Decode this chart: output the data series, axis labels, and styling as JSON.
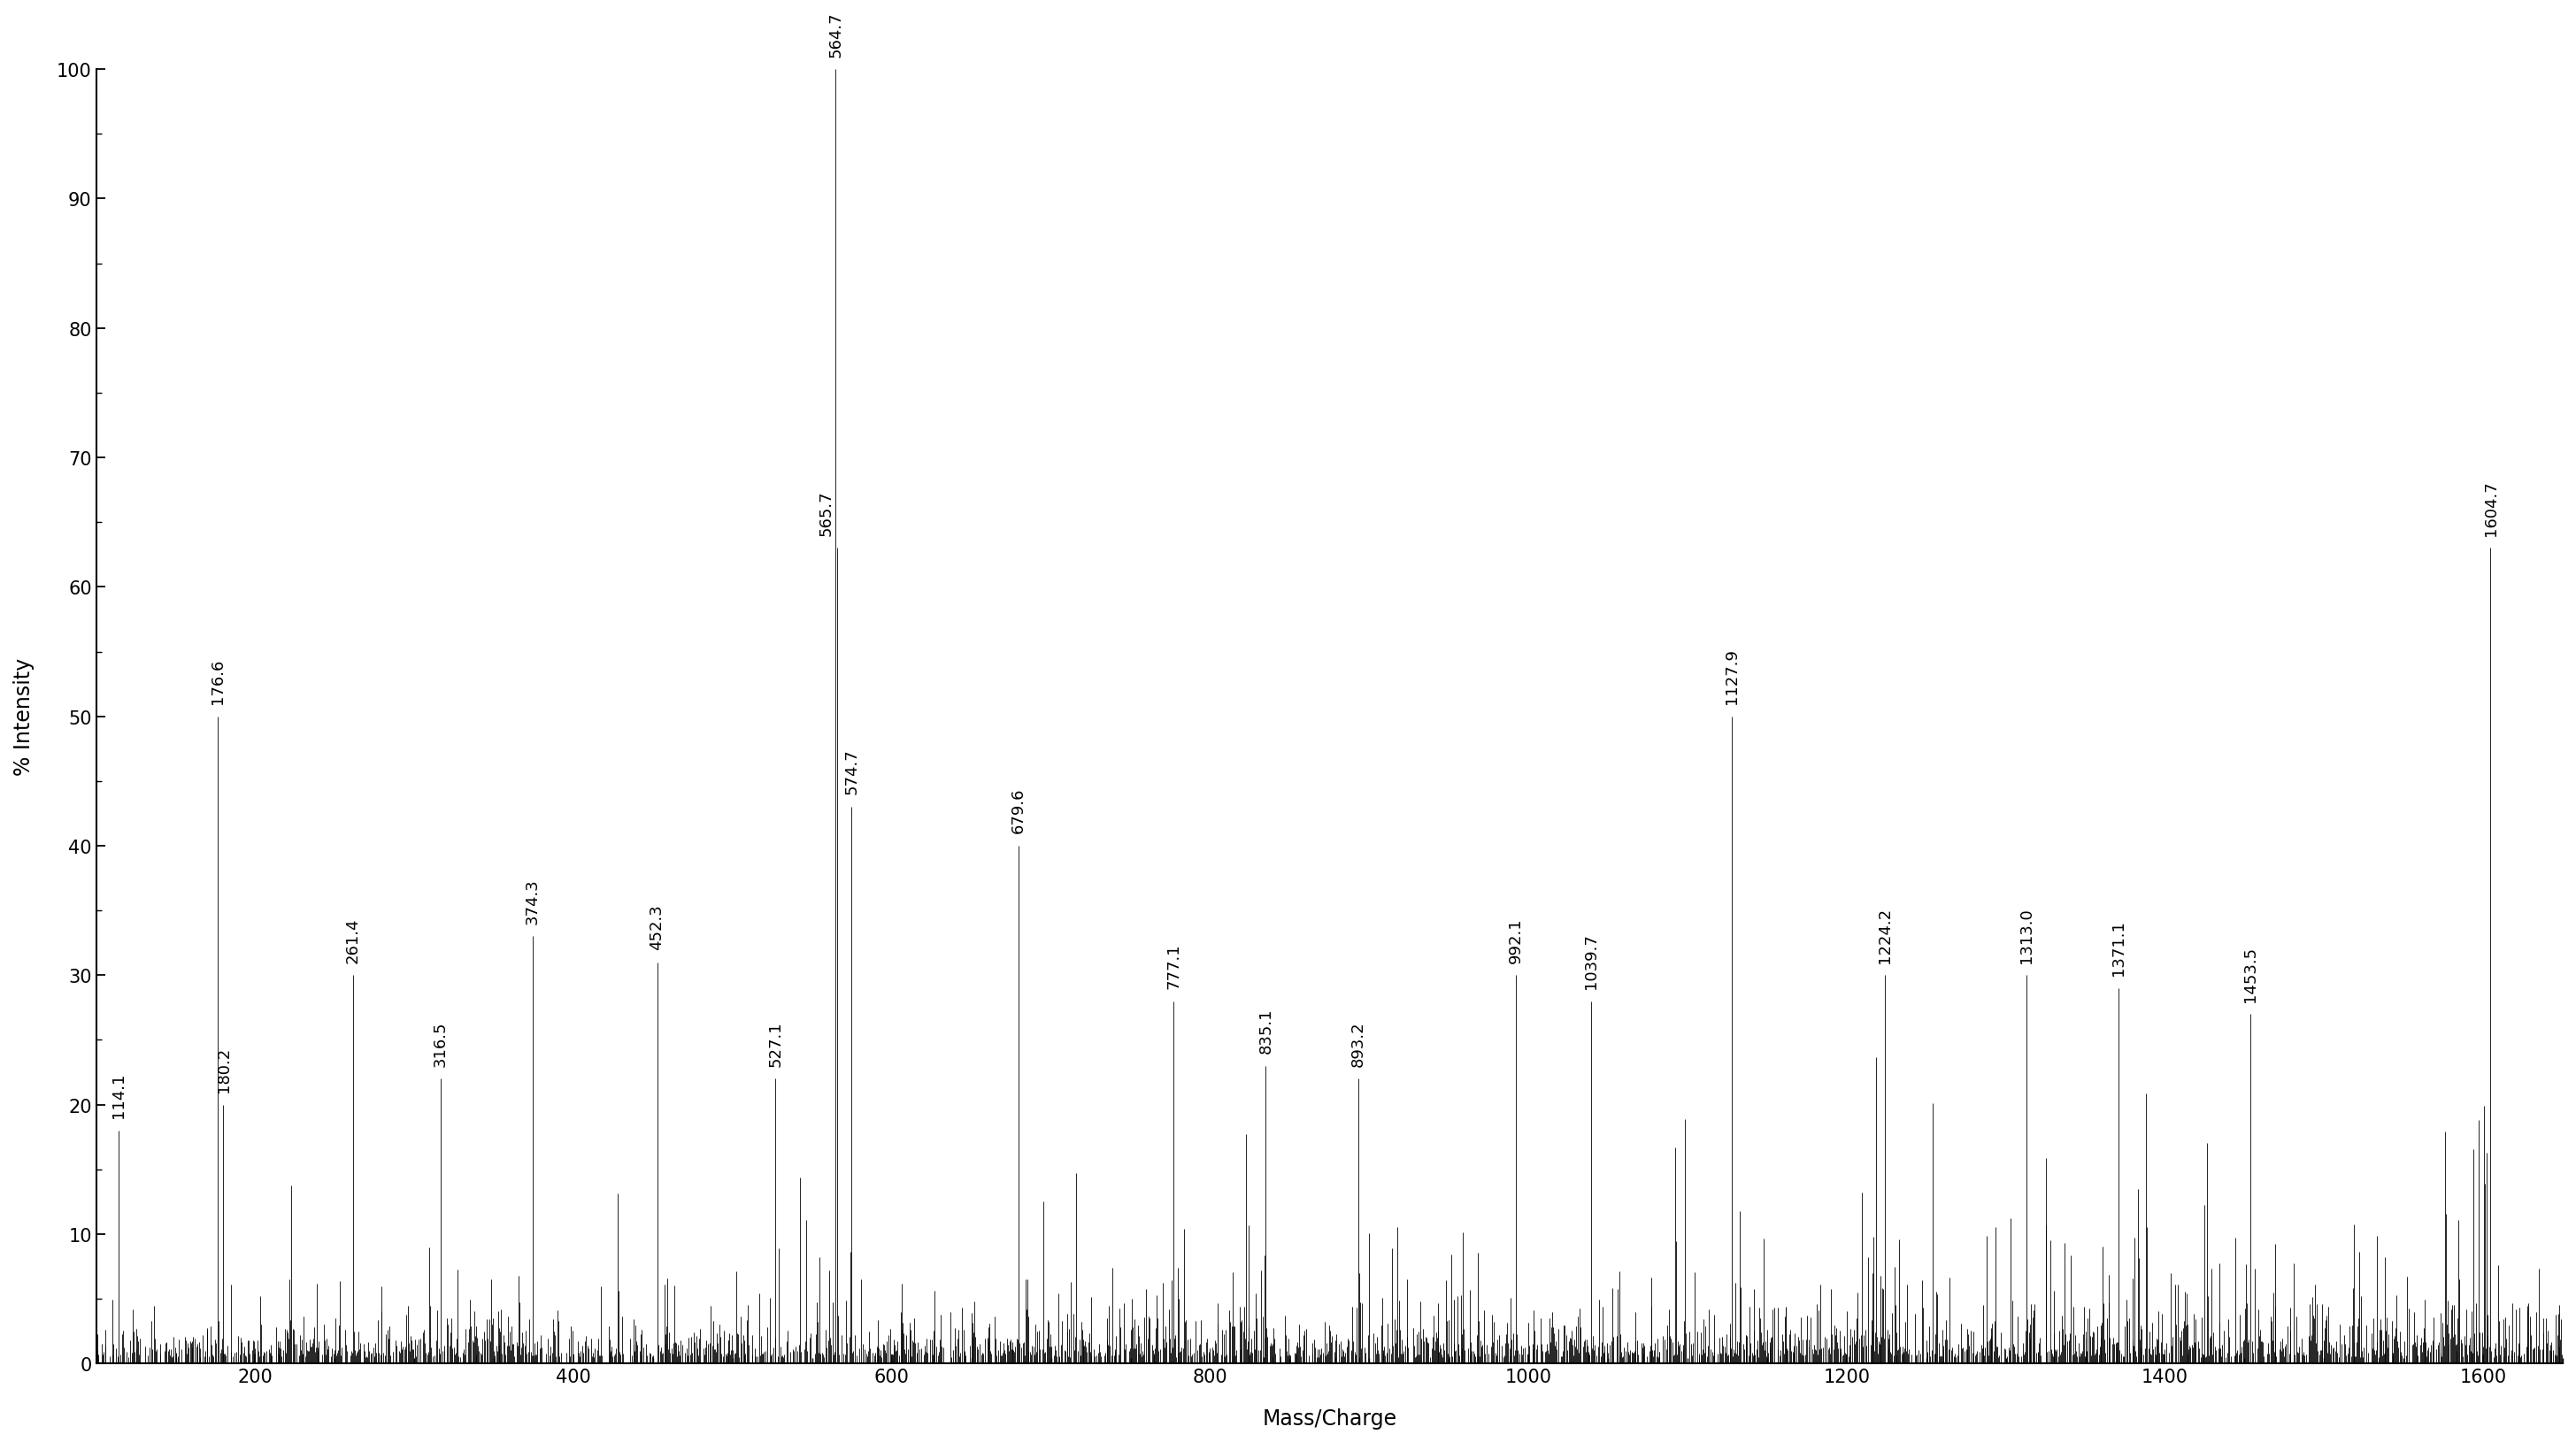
{
  "xlabel": "Mass/Charge",
  "ylabel": "% Intensity",
  "xlim": [
    100,
    1650
  ],
  "ylim": [
    0,
    100
  ],
  "yticks": [
    0,
    10,
    20,
    30,
    40,
    50,
    60,
    70,
    80,
    90,
    100
  ],
  "xticks": [
    200,
    400,
    600,
    800,
    1000,
    1200,
    1400,
    1600
  ],
  "background_color": "#ffffff",
  "line_color": "#000000",
  "labeled_peaks": [
    {
      "mz": 114.1,
      "intensity": 18,
      "label": "114.1"
    },
    {
      "mz": 176.6,
      "intensity": 50,
      "label": "176.6"
    },
    {
      "mz": 180.2,
      "intensity": 20,
      "label": "180.2"
    },
    {
      "mz": 261.4,
      "intensity": 30,
      "label": "261.4"
    },
    {
      "mz": 316.5,
      "intensity": 22,
      "label": "316.5"
    },
    {
      "mz": 374.3,
      "intensity": 33,
      "label": "374.3"
    },
    {
      "mz": 452.3,
      "intensity": 31,
      "label": "452.3"
    },
    {
      "mz": 527.1,
      "intensity": 22,
      "label": "527.1"
    },
    {
      "mz": 564.7,
      "intensity": 100,
      "label": "564.7"
    },
    {
      "mz": 565.7,
      "intensity": 63,
      "label": "565.7"
    },
    {
      "mz": 574.7,
      "intensity": 43,
      "label": "574.7"
    },
    {
      "mz": 679.6,
      "intensity": 40,
      "label": "679.6"
    },
    {
      "mz": 777.1,
      "intensity": 28,
      "label": "777.1"
    },
    {
      "mz": 835.1,
      "intensity": 23,
      "label": "835.1"
    },
    {
      "mz": 893.2,
      "intensity": 22,
      "label": "893.2"
    },
    {
      "mz": 992.1,
      "intensity": 30,
      "label": "992.1"
    },
    {
      "mz": 1039.7,
      "intensity": 28,
      "label": "1039.7"
    },
    {
      "mz": 1127.9,
      "intensity": 50,
      "label": "1127.9"
    },
    {
      "mz": 1224.2,
      "intensity": 30,
      "label": "1224.2"
    },
    {
      "mz": 1313.0,
      "intensity": 30,
      "label": "1313.0"
    },
    {
      "mz": 1371.1,
      "intensity": 29,
      "label": "1371.1"
    },
    {
      "mz": 1453.5,
      "intensity": 27,
      "label": "1453.5"
    },
    {
      "mz": 1604.7,
      "intensity": 63,
      "label": "1604.7"
    }
  ]
}
